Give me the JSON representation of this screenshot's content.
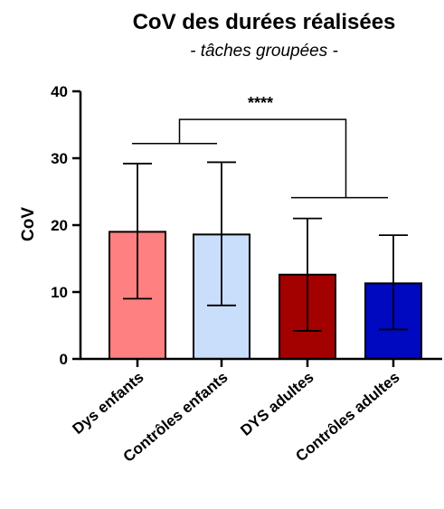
{
  "chart_data": {
    "type": "bar",
    "title": "CoV des durées réalisées",
    "subtitle": "- tâches groupées -",
    "ylabel": "CoV",
    "xlabel": "",
    "ylim": [
      0,
      40
    ],
    "yticks": [
      0,
      10,
      20,
      30,
      40
    ],
    "grid": false,
    "categories": [
      "Dys enfants",
      "Contrôles enfants",
      "DYS adultes",
      "Contrôles adultes"
    ],
    "values": [
      19.0,
      18.6,
      12.6,
      11.3
    ],
    "error_upper": [
      29.2,
      29.4,
      21.0,
      18.5
    ],
    "error_lower": [
      9.0,
      8.0,
      4.2,
      4.4
    ],
    "colors": [
      "#ff8080",
      "#c9defa",
      "#a30000",
      "#0009c0"
    ],
    "significance": {
      "label": "****",
      "comparison": "enfants vs adultes"
    }
  }
}
